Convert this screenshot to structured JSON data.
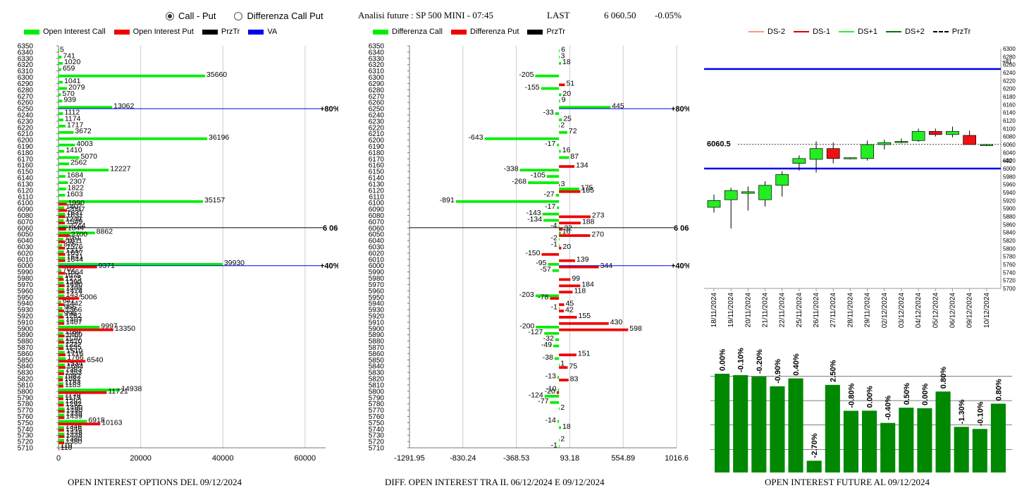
{
  "controls": {
    "radio_callput": "Call - Put",
    "radio_diff": "Differenza Call Put",
    "selected": "callput"
  },
  "quote": {
    "title": "Analisi future : SP 500 MINI - 07:45",
    "last_label": "LAST",
    "last_value": "6 060.50",
    "change": "-0.05%"
  },
  "legend1": [
    {
      "label": "Open Interest Call",
      "color": "#00ee00"
    },
    {
      "label": "Open Interest Put",
      "color": "#ee0000"
    },
    {
      "label": "PrzTr",
      "color": "#000000"
    },
    {
      "label": "VA",
      "color": "#0000ee"
    }
  ],
  "legend2": [
    {
      "label": "Differenza Call",
      "color": "#00ee00"
    },
    {
      "label": "Differenza Put",
      "color": "#ee0000"
    },
    {
      "label": "PrzTr",
      "color": "#000000"
    }
  ],
  "legend3": [
    {
      "label": "DS-2",
      "color": "#ff9977",
      "style": "line"
    },
    {
      "label": "DS-1",
      "color": "#dd0000",
      "style": "line"
    },
    {
      "label": "DS+1",
      "color": "#33ee33",
      "style": "line"
    },
    {
      "label": "DS+2",
      "color": "#007700",
      "style": "line"
    },
    {
      "label": "PrzTr",
      "color": "#000000",
      "style": "dash"
    }
  ],
  "captions": {
    "left": "OPEN INTEREST OPTIONS DEL 09/12/2024",
    "middle": "DIFF. OPEN INTEREST TRA IL 06/12/2024 E 09/12/2024",
    "right": "OPEN INTEREST FUTURE AL 09/12/2024"
  },
  "chart_data": [
    {
      "type": "bar",
      "orientation": "horizontal",
      "strikes": [
        6350,
        6340,
        6330,
        6320,
        6310,
        6300,
        6290,
        6280,
        6270,
        6260,
        6250,
        6240,
        6230,
        6220,
        6210,
        6200,
        6190,
        6180,
        6170,
        6160,
        6150,
        6140,
        6130,
        6120,
        6110,
        6100,
        6090,
        6080,
        6070,
        6060,
        6050,
        6040,
        6030,
        6020,
        6010,
        6000,
        5990,
        5980,
        5970,
        5960,
        5950,
        5940,
        5930,
        5920,
        5910,
        5900,
        5890,
        5880,
        5870,
        5860,
        5850,
        5840,
        5830,
        5820,
        5810,
        5800,
        5790,
        5780,
        5770,
        5760,
        5750,
        5740,
        5730,
        5720,
        5710
      ],
      "series": [
        {
          "name": "Open Interest Call",
          "color": "#00ee00",
          "values": [
            0,
            5,
            741,
            1020,
            659,
            35660,
            1041,
            2079,
            570,
            939,
            13062,
            1112,
            1174,
            1717,
            3672,
            36196,
            4003,
            1410,
            5070,
            2562,
            12227,
            1684,
            2307,
            1822,
            1603,
            35157,
            1407,
            1631,
            1249,
            2244,
            8862,
            1161,
            875,
            1337,
            1641,
            39930,
            702,
            1075,
            1290,
            1408,
            1437,
            641,
            966,
            996,
            1407,
            9997,
            1169,
            1170,
            1222,
            1510,
            1766,
            1534,
            1353,
            1082,
            1183,
            14938,
            1179,
            1292,
            1490,
            1439,
            6918,
            1346,
            1448,
            1380,
            110
          ]
        },
        {
          "name": "Open Interest Put",
          "color": "#ee0000",
          "values": [
            0,
            0,
            0,
            0,
            0,
            0,
            0,
            0,
            0,
            0,
            0,
            0,
            0,
            0,
            0,
            0,
            0,
            0,
            0,
            0,
            0,
            0,
            0,
            0,
            0,
            1990,
            2097,
            1631,
            1549,
            1844,
            2700,
            1611,
            1576,
            1637,
            1644,
            9371,
            1664,
            1275,
            1490,
            1474,
            5006,
            1442,
            1366,
            1282,
            1407,
            13350,
            1469,
            1410,
            1235,
            1716,
            6540,
            1694,
            1353,
            1082,
            1183,
            11721,
            1179,
            1292,
            1490,
            1439,
            10163,
            1346,
            1448,
            1380,
            110
          ]
        }
      ],
      "xlim": [
        0,
        65000
      ],
      "xticks": [
        0,
        20000,
        40000,
        60000
      ],
      "ylim": [
        5710,
        6350
      ],
      "yticks": [
        6350,
        6340,
        6330,
        6320,
        6310,
        6300,
        6290,
        6280,
        6270,
        6260,
        6250,
        6240,
        6230,
        6220,
        6210,
        6200,
        6190,
        6180,
        6170,
        6160,
        6150,
        6140,
        6130,
        6120,
        6110,
        6100,
        6090,
        6080,
        6070,
        6060,
        6050,
        6040,
        6030,
        6020,
        6010,
        6000,
        5990,
        5980,
        5970,
        5960,
        5950,
        5940,
        5930,
        5920,
        5910,
        5900,
        5890,
        5880,
        5870,
        5860,
        5850,
        5840,
        5830,
        5820,
        5810,
        5800,
        5790,
        5780,
        5770,
        5760,
        5750,
        5740,
        5730,
        5720,
        5710
      ],
      "prztr": {
        "value": 6060.5,
        "label": "6 060.50"
      },
      "va": [
        {
          "from": 6250,
          "label": "+80%"
        },
        {
          "from": 6000,
          "label": "+40%"
        }
      ],
      "title": "OPEN INTEREST OPTIONS DEL 09/12/2024"
    },
    {
      "type": "bar",
      "orientation": "horizontal",
      "strikes": [
        6340,
        6330,
        6320,
        6310,
        6300,
        6290,
        6280,
        6270,
        6260,
        6250,
        6240,
        6230,
        6220,
        6210,
        6200,
        6190,
        6180,
        6170,
        6160,
        6150,
        6140,
        6130,
        6120,
        6110,
        6100,
        6090,
        6080,
        6070,
        6060,
        6050,
        6040,
        6030,
        6020,
        6010,
        6000,
        5990,
        5980,
        5970,
        5960,
        5950,
        5940,
        5930,
        5920,
        5910,
        5900,
        5890,
        5880,
        5870,
        5860,
        5850,
        5840,
        5830,
        5820,
        5810,
        5800,
        5790,
        5780,
        5770,
        5760,
        5750,
        5740,
        5730,
        5720,
        5710
      ],
      "series": [
        {
          "name": "Differenza Call",
          "color": "#00ee00",
          "values": [
            6,
            3,
            18,
            0,
            -205,
            0,
            -155,
            20,
            9,
            445,
            -33,
            25,
            2,
            72,
            -643,
            -17,
            16,
            87,
            0,
            -338,
            -105,
            -268,
            175,
            -27,
            -891,
            -17,
            -143,
            -134,
            -4,
            16,
            -2,
            -1,
            0,
            0,
            -95,
            -57,
            0,
            0,
            0,
            -203,
            0,
            -1,
            0,
            0,
            -200,
            -127,
            -32,
            -49,
            0,
            -38,
            1,
            0,
            -13,
            0,
            -10,
            -124,
            -77,
            2,
            0,
            -14,
            18,
            0,
            2,
            -1
          ]
        },
        {
          "name": "Differenza Put",
          "color": "#ee0000",
          "values": [
            0,
            0,
            0,
            0,
            0,
            51,
            0,
            0,
            0,
            0,
            0,
            0,
            0,
            0,
            0,
            0,
            0,
            0,
            134,
            0,
            0,
            3,
            185,
            0,
            0,
            0,
            273,
            188,
            32,
            270,
            0,
            20,
            -150,
            139,
            344,
            0,
            99,
            184,
            118,
            -78,
            45,
            42,
            155,
            430,
            598,
            0,
            0,
            0,
            151,
            0,
            75,
            0,
            83,
            0,
            -20,
            0,
            0,
            0,
            0,
            0,
            0,
            0,
            0,
            0
          ]
        }
      ],
      "xlim": [
        -1291.95,
        1016.6
      ],
      "xticks": [
        -1291.95,
        -830.24,
        -368.53,
        93.18,
        554.89,
        1016.6
      ],
      "ylim": [
        5710,
        6350
      ],
      "yticks": [
        6350,
        6340,
        6330,
        6320,
        6310,
        6300,
        6290,
        6280,
        6270,
        6260,
        6250,
        6240,
        6230,
        6220,
        6210,
        6200,
        6190,
        6180,
        6170,
        6160,
        6150,
        6140,
        6130,
        6120,
        6110,
        6100,
        6090,
        6080,
        6070,
        6060,
        6050,
        6040,
        6030,
        6020,
        6010,
        6000,
        5990,
        5980,
        5970,
        5960,
        5950,
        5940,
        5930,
        5920,
        5910,
        5900,
        5890,
        5880,
        5870,
        5860,
        5850,
        5840,
        5830,
        5820,
        5810,
        5800,
        5790,
        5780,
        5770,
        5760,
        5750,
        5740,
        5730,
        5720,
        5710
      ],
      "prztr": {
        "value": 6060.5,
        "label": "6 060.50"
      },
      "va": [
        {
          "from": 6250,
          "label": "+80%"
        },
        {
          "from": 6000,
          "label": "+40%"
        }
      ],
      "title": "DIFF. OPEN INTEREST TRA IL 06/12/2024 E 09/12/2024"
    },
    {
      "type": "candlestick",
      "dates": [
        "18/11/2024",
        "19/11/2024",
        "20/11/2024",
        "21/11/2024",
        "22/11/2024",
        "25/11/2024",
        "26/11/2024",
        "27/11/2024",
        "28/11/2024",
        "29/11/2024",
        "02/12/2024",
        "03/12/2024",
        "04/12/2024",
        "05/12/2024",
        "06/12/2024",
        "09/12/2024",
        "10/12/2024"
      ],
      "ohlc": [
        [
          5903,
          5935,
          5890,
          5920
        ],
        [
          5922,
          5952,
          5850,
          5945
        ],
        [
          5938,
          5955,
          5895,
          5942
        ],
        [
          5922,
          5968,
          5905,
          5958
        ],
        [
          5958,
          5993,
          5930,
          5985
        ],
        [
          6013,
          6033,
          5995,
          6025
        ],
        [
          6023,
          6068,
          5990,
          6050
        ],
        [
          6050,
          6065,
          6013,
          6025
        ],
        [
          6026,
          6028,
          6023,
          6027
        ],
        [
          6025,
          6070,
          6020,
          6060
        ],
        [
          6060,
          6072,
          6048,
          6065
        ],
        [
          6065,
          6075,
          6063,
          6068
        ],
        [
          6070,
          6100,
          6067,
          6093
        ],
        [
          6093,
          6100,
          6080,
          6085
        ],
        [
          6085,
          6105,
          6078,
          6093
        ],
        [
          6083,
          6095,
          6062,
          6060
        ],
        [
          6060,
          6062,
          6057,
          6060
        ]
      ],
      "levels": [
        {
          "name": "+81",
          "value": 6249,
          "color": "#0000ee"
        },
        {
          "name": "+40",
          "value": 6000,
          "color": "#0000ee"
        },
        {
          "name": "6060.5",
          "value": 6060.5,
          "color": "#000000",
          "style": "dash"
        }
      ],
      "ylim": [
        5700,
        6300
      ],
      "yticks": [
        6300,
        6280,
        6260,
        6240,
        6220,
        6200,
        6180,
        6160,
        6140,
        6120,
        6100,
        6080,
        6060,
        6040,
        6020,
        6000,
        5980,
        5960,
        5940,
        5920,
        5900,
        5880,
        5860,
        5840,
        5820,
        5800,
        5780,
        5760,
        5740,
        5720,
        5700
      ],
      "last_label": "6060.5"
    },
    {
      "type": "bar",
      "categories": [
        "18/11/2024",
        "19/11/2024",
        "20/11/2024",
        "21/11/2024",
        "22/11/2024",
        "25/11/2024",
        "26/11/2024",
        "27/11/2024",
        "28/11/2024",
        "29/11/2024",
        "02/12/2024",
        "03/12/2024",
        "04/12/2024",
        "05/12/2024",
        "06/12/2024",
        "09/12/2024"
      ],
      "values": [
        100.0,
        98.6,
        97.1,
        87.3,
        95.3,
        11.9,
        88.7,
        62.5,
        62.6,
        50.2,
        65.6,
        65.1,
        82.0,
        46.2,
        44.1,
        69.7
      ],
      "labels": [
        "0.00%",
        "-0.10%",
        "-0.20%",
        "-0.90%",
        "0.40%",
        "-2.70%",
        "2.50%",
        "-0.80%",
        "0.00%",
        "-0.40%",
        "0.50%",
        "0.00%",
        "0.80%",
        "-1.30%",
        "-0.10%",
        "0.80%"
      ],
      "color": "#008800",
      "title": "OPEN INTEREST FUTURE AL 09/12/2024"
    }
  ]
}
